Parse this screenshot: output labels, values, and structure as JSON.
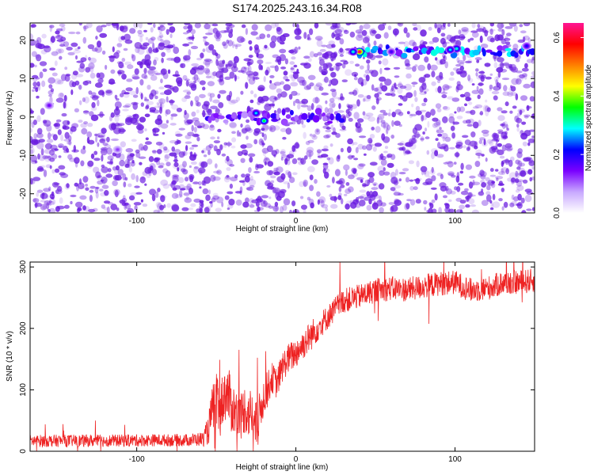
{
  "title": "S174.2025.243.16.34.R08",
  "colors": {
    "spectrogram_base": "#ffffff",
    "spectrogram_blob": "#6a1be0",
    "snr_line": "#ee2222"
  },
  "chart_data": [
    {
      "type": "heatmap",
      "xlabel": "Height of straight line (km)",
      "ylabel": "Frequency (Hz)",
      "xlim": [
        -167,
        150
      ],
      "ylim": [
        -25,
        24.5
      ],
      "x_ticks": [
        -100,
        0,
        100
      ],
      "y_ticks": [
        -20,
        -10,
        0,
        10,
        20
      ],
      "colorbar": {
        "label": "Normalized spectral amplitude",
        "range": [
          0,
          0.65
        ],
        "ticks": [
          0.0,
          0.2,
          0.4,
          0.6
        ],
        "colormap": [
          "#ffffff",
          "#c8a8ff",
          "#7a00ff",
          "#0000ff",
          "#00ffff",
          "#00ff00",
          "#ffff00",
          "#ff7f00",
          "#ff0000",
          "#ff1493"
        ]
      },
      "features": [
        {
          "name": "band",
          "x_range": [
            -57,
            30
          ],
          "frequency": 0,
          "amplitude": 0.2
        },
        {
          "name": "band",
          "x_range": [
            35,
            150
          ],
          "frequency": 17,
          "amplitude": 0.3
        },
        {
          "name": "peak",
          "x": -20,
          "frequency": -1,
          "amplitude": 0.35
        },
        {
          "name": "peak",
          "x": -25,
          "frequency": 1,
          "amplitude": 0.28
        },
        {
          "name": "peak",
          "x": 40,
          "frequency": 17,
          "amplitude": 0.62
        },
        {
          "name": "peak",
          "x": 36,
          "frequency": 17,
          "amplitude": 0.3
        },
        {
          "name": "peak",
          "x": 101,
          "frequency": 17.8,
          "amplitude": 0.3
        },
        {
          "name": "peak",
          "x": 97,
          "frequency": 17.5,
          "amplitude": 0.28
        },
        {
          "name": "peak",
          "x": 60,
          "frequency": 17,
          "amplitude": 0.18
        },
        {
          "name": "peak",
          "x": 145,
          "frequency": 18.5,
          "amplitude": 0.2
        },
        {
          "name": "peak",
          "x": -155,
          "frequency": 3,
          "amplitude": 0.15
        },
        {
          "name": "peak",
          "x": -112,
          "frequency": -8.5,
          "amplitude": 0.12
        }
      ]
    },
    {
      "type": "line",
      "xlabel": "Height of straight line (km)",
      "ylabel": "SNR (10 * v/v)",
      "xlim": [
        -167,
        150
      ],
      "ylim": [
        0,
        308
      ],
      "x_ticks": [
        -100,
        0,
        100
      ],
      "y_ticks": [
        0,
        100,
        200,
        300
      ],
      "series": [
        {
          "x": [
            -167,
            -150,
            -120,
            -90,
            -70,
            -58,
            -55,
            -52,
            -50,
            -48,
            -45,
            -42,
            -40,
            -38,
            -35,
            -32,
            -30,
            -28,
            -26,
            -24,
            -22,
            -20,
            -18,
            -15,
            -12,
            -10,
            -8,
            -5,
            0,
            5,
            10,
            15,
            20,
            25,
            30,
            40,
            50,
            60,
            70,
            80,
            90,
            100,
            110,
            120,
            130,
            140,
            150
          ],
          "y": [
            17,
            17,
            17,
            18,
            18,
            20,
            35,
            75,
            82,
            60,
            95,
            88,
            70,
            65,
            55,
            70,
            60,
            65,
            40,
            42,
            70,
            90,
            100,
            120,
            110,
            125,
            140,
            150,
            160,
            175,
            190,
            205,
            218,
            233,
            245,
            252,
            262,
            265,
            263,
            268,
            273,
            275,
            262,
            265,
            274,
            275,
            278
          ],
          "noise": [
            10,
            10,
            10,
            10,
            10,
            12,
            25,
            40,
            45,
            45,
            45,
            45,
            45,
            40,
            40,
            40,
            40,
            40,
            40,
            40,
            35,
            30,
            30,
            25,
            25,
            25,
            25,
            25,
            25,
            25,
            25,
            22,
            20,
            20,
            20,
            20,
            20,
            20,
            20,
            20,
            20,
            20,
            20,
            20,
            20,
            20,
            20
          ]
        }
      ]
    }
  ]
}
